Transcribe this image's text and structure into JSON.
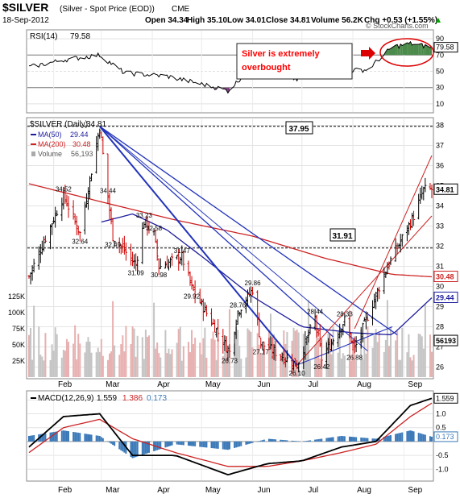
{
  "header": {
    "symbol": "$SILVER",
    "description": "(Silver - Spot Price (EOD))",
    "exchange": "CME",
    "date": "18-Sep-2012",
    "open": "Open 34.34",
    "high": "High 35.10",
    "low": "Low 34.01",
    "close": "Close 34.81",
    "volume": "Volume 56.2K",
    "change": "Chg +0.53 (+1.55%)",
    "change_arrow": "up-arrow-icon",
    "watermark": "© StockCharts.com"
  },
  "colors": {
    "price_up": "#000000",
    "price_down": "#cc0000",
    "ma50": "#1c1c9c",
    "ma200": "#cc2222",
    "trendline": "#2233bb",
    "volume": "#c0c0c0",
    "rsi_fill_high": "#4a8a4a",
    "rsi_fill_low": "#803b80",
    "macd_line": "#000000",
    "signal_line": "#cc2222",
    "histogram": "#3a78b8",
    "annotation_text": "#ff0000",
    "annotation_oval": "#dd0000"
  },
  "rsi_panel": {
    "label": "RSI(14)",
    "value": "79.58",
    "axis_ticks": [
      "90",
      "79.58",
      "70",
      "50",
      "30",
      "10"
    ],
    "annotation": "Silver is extremely overbought",
    "annotation_lines": [
      "Silver is extremely",
      "overbought"
    ]
  },
  "price_panel": {
    "label": "$SILVER (Daily)",
    "last": "34.81",
    "legend": [
      {
        "name": "MA(50)",
        "value": "29.44",
        "color": "#1c1c9c"
      },
      {
        "name": "MA(200)",
        "value": "30.48",
        "color": "#cc2222"
      },
      {
        "name": "Volume",
        "value": "56,193",
        "color": "#999999"
      }
    ],
    "resistance_labels": [
      "37.95",
      "31.91"
    ],
    "price_labels": [
      "34.52",
      "34.44",
      "33.23",
      "32.64",
      "32.49",
      "32.58",
      "31.47",
      "31.09",
      "30.98",
      "29.92",
      "29.86",
      "28.76",
      "28.44",
      "28.33",
      "27.17",
      "26.73",
      "26.42",
      "26.88",
      "26.10"
    ],
    "right_axis_ticks": [
      "38",
      "37",
      "36",
      "35",
      "34",
      "33",
      "32",
      "31",
      "30",
      "29",
      "28",
      "27",
      "26"
    ],
    "right_value_boxes": [
      "34.81",
      "30.48",
      "29.44",
      "56193"
    ],
    "volume_ticks": [
      "125K",
      "100K",
      "75K",
      "50K",
      "25K"
    ]
  },
  "macd_panel": {
    "label": "MACD(12,26,9)",
    "macd_value": "1.559",
    "signal_value": "1.386",
    "hist_value": "0.173",
    "axis_ticks": [
      "1.559",
      "1.0",
      "0.5",
      "0.173",
      "-0.5",
      "-1.0"
    ]
  },
  "x_axis": {
    "months": [
      "Feb",
      "Mar",
      "Apr",
      "May",
      "Jun",
      "Jul",
      "Aug",
      "Sep"
    ]
  },
  "chart_data": {
    "type": "candlestick",
    "title": "$SILVER (Silver - Spot Price (EOD))",
    "x_range": [
      "2012-01-17",
      "2012-09-18"
    ],
    "y_range_price": [
      25.5,
      38.3
    ],
    "y_range_rsi": [
      0,
      100
    ],
    "y_range_macd": [
      -1.4,
      1.8
    ],
    "volume_range": [
      0,
      150000
    ],
    "key_points": [
      {
        "date": "2012-01-17",
        "price": 30.5
      },
      {
        "date": "2012-02-07",
        "price": 34.52
      },
      {
        "date": "2012-02-17",
        "price": 32.64
      },
      {
        "date": "2012-02-29",
        "price": 37.95
      },
      {
        "date": "2012-03-05",
        "price": 34.44
      },
      {
        "date": "2012-03-08",
        "price": 32.49
      },
      {
        "date": "2012-03-22",
        "price": 31.09
      },
      {
        "date": "2012-03-27",
        "price": 33.23
      },
      {
        "date": "2012-04-02",
        "price": 32.58
      },
      {
        "date": "2012-04-05",
        "price": 30.98
      },
      {
        "date": "2012-04-19",
        "price": 31.47
      },
      {
        "date": "2012-04-25",
        "price": 29.92
      },
      {
        "date": "2012-05-18",
        "price": 26.73
      },
      {
        "date": "2012-05-23",
        "price": 28.76
      },
      {
        "date": "2012-06-01",
        "price": 29.86
      },
      {
        "date": "2012-06-06",
        "price": 27.17
      },
      {
        "date": "2012-06-28",
        "price": 26.1
      },
      {
        "date": "2012-07-09",
        "price": 28.44
      },
      {
        "date": "2012-07-13",
        "price": 26.42
      },
      {
        "date": "2012-07-27",
        "price": 28.33
      },
      {
        "date": "2012-08-02",
        "price": 26.88
      },
      {
        "date": "2012-08-22",
        "price": 31.0
      },
      {
        "date": "2012-09-07",
        "price": 33.5
      },
      {
        "date": "2012-09-13",
        "price": 34.8
      },
      {
        "date": "2012-09-18",
        "price": 34.81
      }
    ],
    "ma50_points": [
      {
        "date": "2012-03-01",
        "value": 33.2
      },
      {
        "date": "2012-03-20",
        "value": 33.6
      },
      {
        "date": "2012-04-10",
        "value": 32.8
      },
      {
        "date": "2012-05-01",
        "value": 31.5
      },
      {
        "date": "2012-06-01",
        "value": 29.5
      },
      {
        "date": "2012-07-01",
        "value": 28.0
      },
      {
        "date": "2012-08-01",
        "value": 27.7
      },
      {
        "date": "2012-08-25",
        "value": 27.6
      },
      {
        "date": "2012-09-18",
        "value": 29.44
      }
    ],
    "ma200_points": [
      {
        "date": "2012-01-17",
        "value": 35.1
      },
      {
        "date": "2012-03-01",
        "value": 34.2
      },
      {
        "date": "2012-04-15",
        "value": 33.3
      },
      {
        "date": "2012-06-01",
        "value": 32.5
      },
      {
        "date": "2012-07-15",
        "value": 31.4
      },
      {
        "date": "2012-08-25",
        "value": 30.6
      },
      {
        "date": "2012-09-18",
        "value": 30.48
      }
    ],
    "rsi_points": [
      {
        "date": "2012-01-17",
        "value": 55
      },
      {
        "date": "2012-02-07",
        "value": 64
      },
      {
        "date": "2012-02-29",
        "value": 70
      },
      {
        "date": "2012-03-15",
        "value": 48
      },
      {
        "date": "2012-04-10",
        "value": 44
      },
      {
        "date": "2012-05-10",
        "value": 30
      },
      {
        "date": "2012-05-17",
        "value": 26
      },
      {
        "date": "2012-06-01",
        "value": 56
      },
      {
        "date": "2012-06-28",
        "value": 40
      },
      {
        "date": "2012-07-20",
        "value": 50
      },
      {
        "date": "2012-08-10",
        "value": 52
      },
      {
        "date": "2012-08-25",
        "value": 80
      },
      {
        "date": "2012-09-05",
        "value": 84
      },
      {
        "date": "2012-09-18",
        "value": 79.58
      }
    ],
    "macd_points": [
      {
        "date": "2012-01-17",
        "macd": -0.2,
        "signal": -0.4
      },
      {
        "date": "2012-02-07",
        "macd": 0.9,
        "signal": 0.5
      },
      {
        "date": "2012-02-29",
        "macd": 1.0,
        "signal": 0.8
      },
      {
        "date": "2012-03-20",
        "macd": -0.5,
        "signal": 0.1
      },
      {
        "date": "2012-04-15",
        "macd": -0.5,
        "signal": -0.4
      },
      {
        "date": "2012-05-17",
        "macd": -1.2,
        "signal": -0.9
      },
      {
        "date": "2012-06-10",
        "macd": -0.8,
        "signal": -0.9
      },
      {
        "date": "2012-07-01",
        "macd": -0.7,
        "signal": -0.7
      },
      {
        "date": "2012-07-25",
        "macd": -0.2,
        "signal": -0.4
      },
      {
        "date": "2012-08-15",
        "macd": 0.0,
        "signal": -0.1
      },
      {
        "date": "2012-09-05",
        "macd": 1.3,
        "signal": 0.9
      },
      {
        "date": "2012-09-18",
        "macd": 1.559,
        "signal": 1.386
      }
    ],
    "horizontal_lines": [
      37.95,
      31.91
    ],
    "grid": true
  }
}
